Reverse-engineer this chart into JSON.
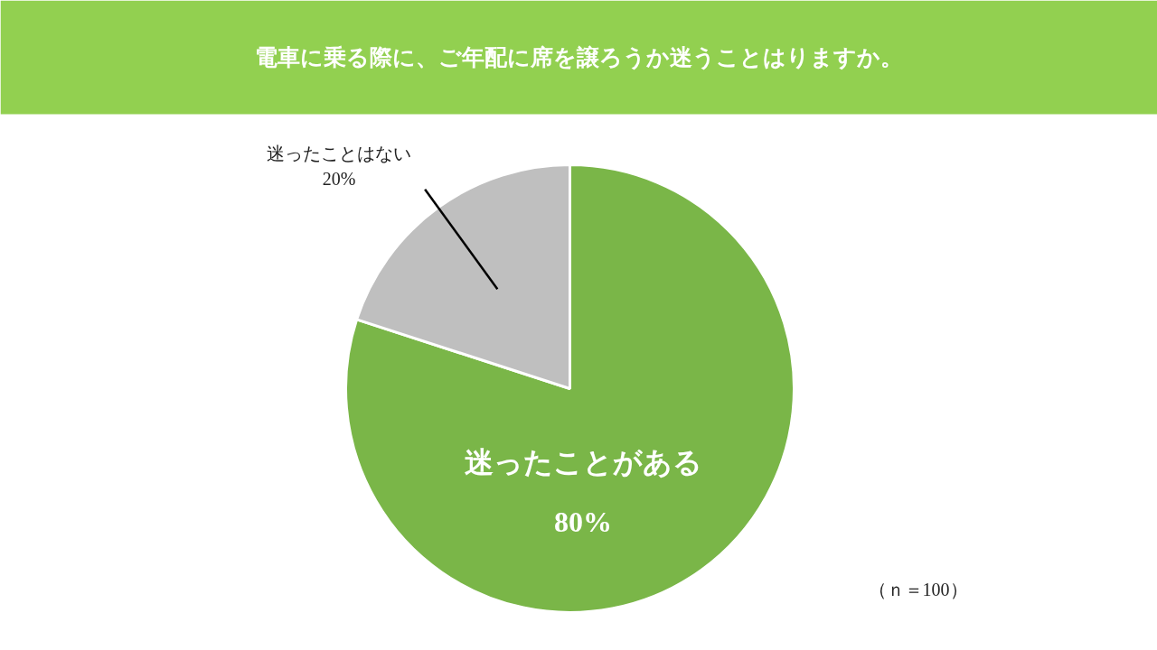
{
  "chart_data": {
    "type": "pie",
    "title": "電車に乗る際に、ご年配に席を譲ろうか迷うことはりますか。",
    "categories": [
      "迷ったことがある",
      "迷ったことはない"
    ],
    "values": [
      80,
      20
    ],
    "colors": [
      "#7ab648",
      "#bfbfbf"
    ],
    "value_labels": [
      "80%",
      "20%"
    ],
    "annotations": [
      "（ｎ＝100）"
    ]
  }
}
